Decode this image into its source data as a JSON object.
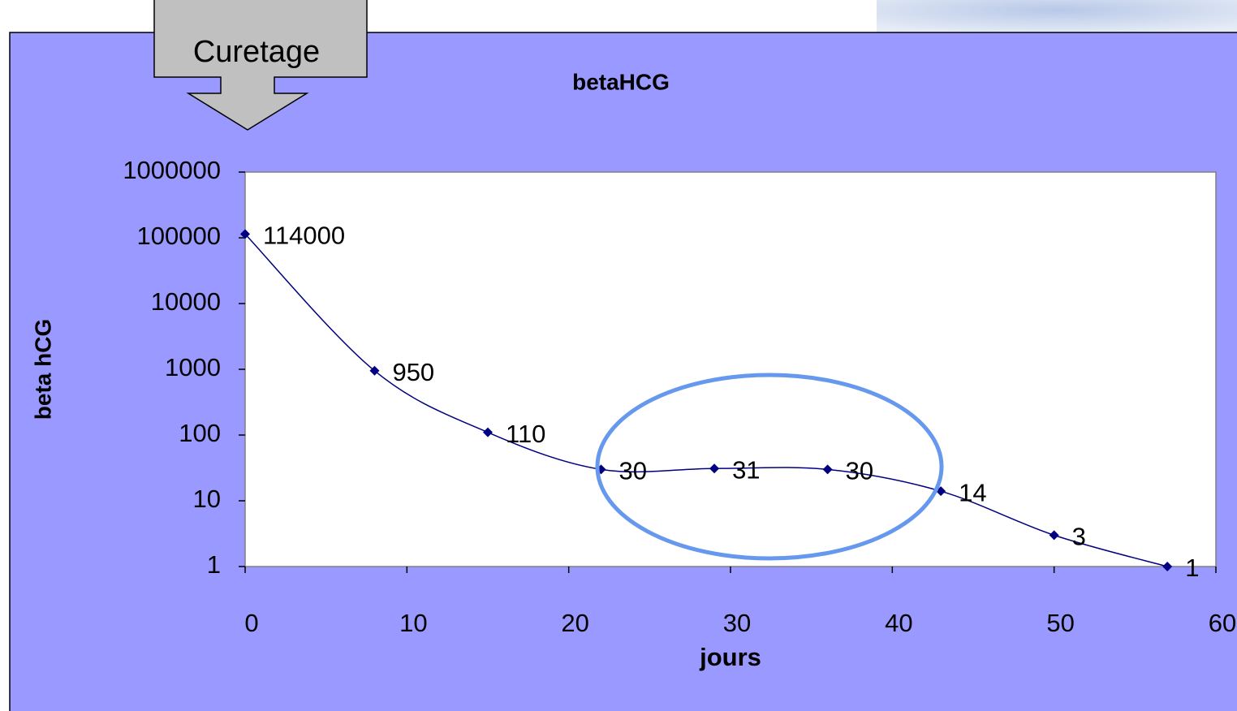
{
  "chart_data": {
    "type": "line",
    "title": "betaHCG",
    "xlabel": "jours",
    "ylabel": "beta hCG",
    "annotation": "Curetage",
    "x": [
      0,
      8,
      15,
      22,
      29,
      36,
      43,
      50,
      57
    ],
    "series": [
      {
        "color": "#000080",
        "values": [
          114000,
          950,
          110,
          30,
          31,
          30,
          14,
          3,
          1
        ]
      }
    ],
    "xlim": [
      0,
      60
    ],
    "xticks": [
      0,
      10,
      20,
      30,
      40,
      50,
      60
    ],
    "ylim": [
      1,
      1000000
    ],
    "yticks": [
      1,
      10,
      100,
      1000,
      10000,
      100000,
      1000000
    ],
    "ylog": true,
    "grid": false,
    "data_labels": true
  }
}
